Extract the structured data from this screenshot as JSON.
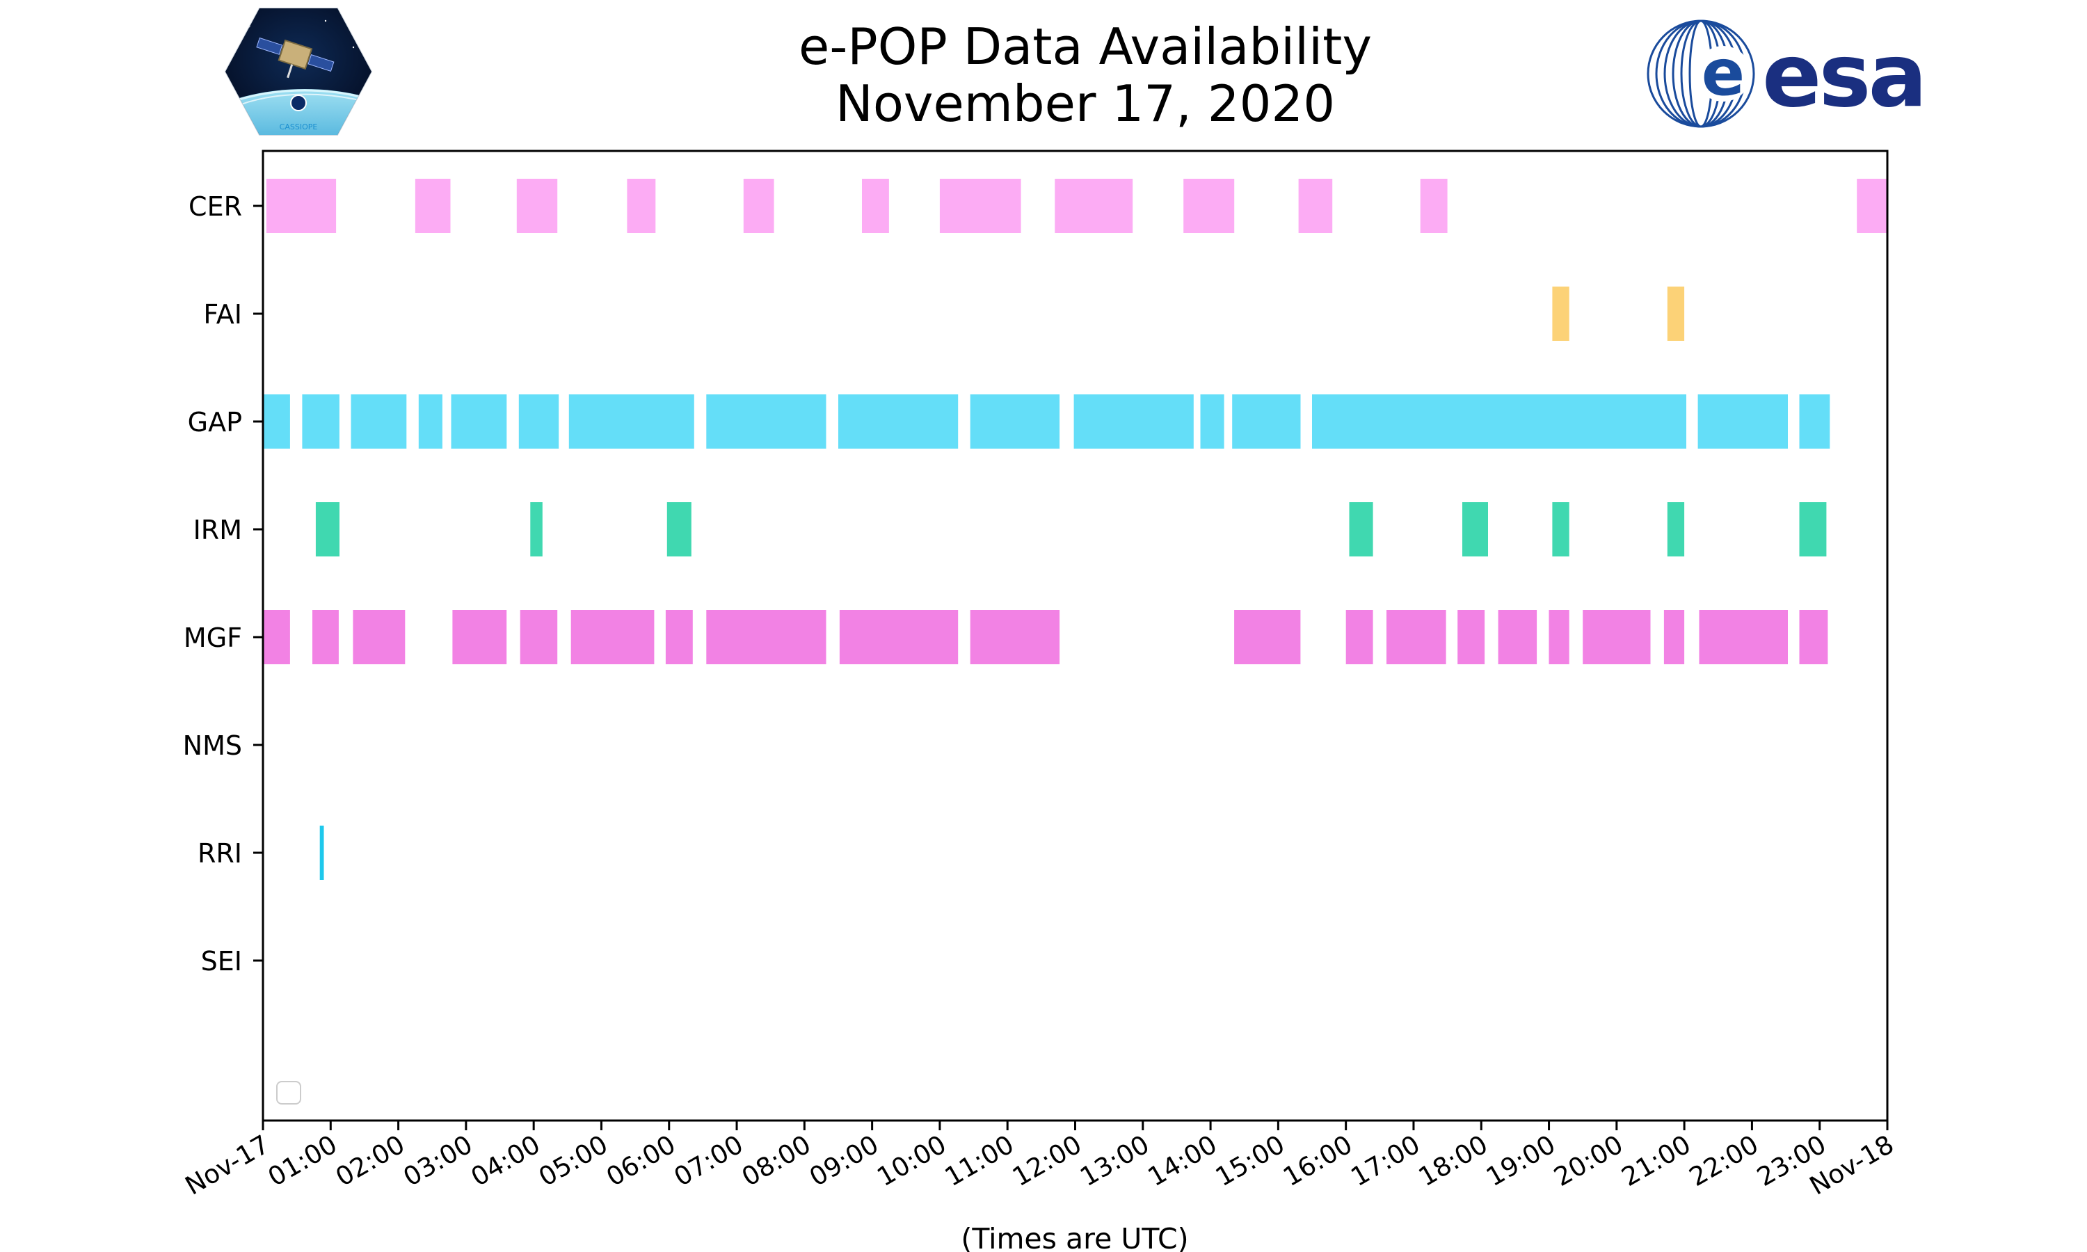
{
  "header": {
    "title_line1": "e-POP Data Availability",
    "title_line2": "November 17, 2020",
    "left_logo_text": "CASSIOPE",
    "right_logo_text": "esa"
  },
  "chart_data": {
    "type": "broken-bar timeline",
    "title": "e-POP Data Availability November 17, 2020",
    "xlabel": "(Times are UTC)",
    "ylabel": "",
    "x_unit": "hours (UTC)",
    "xlim": [
      0,
      24
    ],
    "x_ticks": [
      {
        "h": 0,
        "label": "Nov-17"
      },
      {
        "h": 1,
        "label": "01:00"
      },
      {
        "h": 2,
        "label": "02:00"
      },
      {
        "h": 3,
        "label": "03:00"
      },
      {
        "h": 4,
        "label": "04:00"
      },
      {
        "h": 5,
        "label": "05:00"
      },
      {
        "h": 6,
        "label": "06:00"
      },
      {
        "h": 7,
        "label": "07:00"
      },
      {
        "h": 8,
        "label": "08:00"
      },
      {
        "h": 9,
        "label": "09:00"
      },
      {
        "h": 10,
        "label": "10:00"
      },
      {
        "h": 11,
        "label": "11:00"
      },
      {
        "h": 12,
        "label": "12:00"
      },
      {
        "h": 13,
        "label": "13:00"
      },
      {
        "h": 14,
        "label": "14:00"
      },
      {
        "h": 15,
        "label": "15:00"
      },
      {
        "h": 16,
        "label": "16:00"
      },
      {
        "h": 17,
        "label": "17:00"
      },
      {
        "h": 18,
        "label": "18:00"
      },
      {
        "h": 19,
        "label": "19:00"
      },
      {
        "h": 20,
        "label": "20:00"
      },
      {
        "h": 21,
        "label": "21:00"
      },
      {
        "h": 22,
        "label": "22:00"
      },
      {
        "h": 23,
        "label": "23:00"
      },
      {
        "h": 24,
        "label": "Nov-18"
      }
    ],
    "grid": false,
    "legend": {
      "placement": "lower-left",
      "entries": []
    },
    "instruments": [
      {
        "name": "CER",
        "color": "#fcacf4",
        "intervals": [
          [
            0.05,
            1.08
          ],
          [
            2.25,
            2.77
          ],
          [
            3.75,
            4.35
          ],
          [
            5.38,
            5.8
          ],
          [
            7.1,
            7.55
          ],
          [
            8.85,
            9.25
          ],
          [
            10.0,
            11.2
          ],
          [
            11.7,
            12.85
          ],
          [
            13.6,
            14.35
          ],
          [
            15.3,
            15.8
          ],
          [
            17.1,
            17.5
          ],
          [
            23.55,
            24.0
          ]
        ]
      },
      {
        "name": "FAI",
        "color": "#fcd277",
        "intervals": [
          [
            19.05,
            19.3
          ],
          [
            20.75,
            21.0
          ]
        ]
      },
      {
        "name": "GAP",
        "color": "#64def8",
        "intervals": [
          [
            0.0,
            0.4
          ],
          [
            0.58,
            1.13
          ],
          [
            1.3,
            2.12
          ],
          [
            2.3,
            2.65
          ],
          [
            2.78,
            3.6
          ],
          [
            3.78,
            4.37
          ],
          [
            4.52,
            6.37
          ],
          [
            6.55,
            8.32
          ],
          [
            8.5,
            10.27
          ],
          [
            10.45,
            11.77
          ],
          [
            11.98,
            13.75
          ],
          [
            13.85,
            14.2
          ],
          [
            14.32,
            15.33
          ],
          [
            15.5,
            21.03
          ],
          [
            21.2,
            22.53
          ],
          [
            22.7,
            23.15
          ]
        ]
      },
      {
        "name": "IRM",
        "color": "#40d8b0",
        "intervals": [
          [
            0.78,
            1.13
          ],
          [
            3.95,
            4.13
          ],
          [
            5.97,
            6.33
          ],
          [
            16.05,
            16.4
          ],
          [
            17.72,
            18.1
          ],
          [
            19.05,
            19.3
          ],
          [
            20.75,
            21.0
          ],
          [
            22.7,
            23.1
          ]
        ]
      },
      {
        "name": "MGF",
        "color": "#f282e4",
        "intervals": [
          [
            0.0,
            0.4
          ],
          [
            0.73,
            1.12
          ],
          [
            1.33,
            2.1
          ],
          [
            2.8,
            3.6
          ],
          [
            3.8,
            4.35
          ],
          [
            4.55,
            5.78
          ],
          [
            5.95,
            6.35
          ],
          [
            6.55,
            8.32
          ],
          [
            8.52,
            10.27
          ],
          [
            10.45,
            11.77
          ],
          [
            14.35,
            15.33
          ],
          [
            16.0,
            16.4
          ],
          [
            16.6,
            17.48
          ],
          [
            17.65,
            18.05
          ],
          [
            18.25,
            18.82
          ],
          [
            19.0,
            19.3
          ],
          [
            19.5,
            20.5
          ],
          [
            20.7,
            21.0
          ],
          [
            21.22,
            22.53
          ],
          [
            22.7,
            23.12
          ]
        ]
      },
      {
        "name": "NMS",
        "color": "#000000",
        "intervals": []
      },
      {
        "name": "RRI",
        "color": "#1ec8ec",
        "intervals": [
          [
            0.84,
            0.9
          ]
        ]
      },
      {
        "name": "SEI",
        "color": "#000000",
        "intervals": []
      }
    ]
  }
}
